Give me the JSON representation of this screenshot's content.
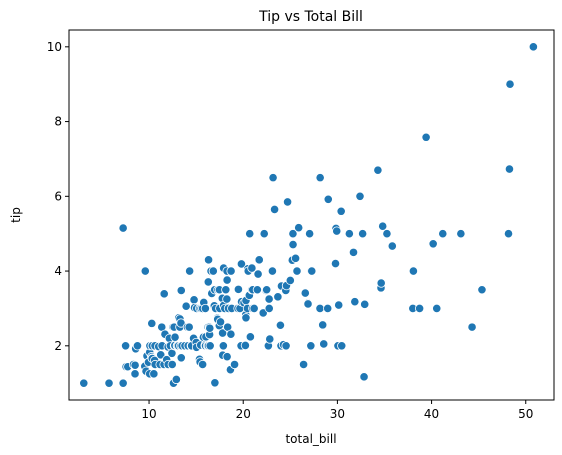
{
  "chart_data": {
    "type": "scatter",
    "title": "Tip vs Total Bill",
    "xlabel": "total_bill",
    "ylabel": "tip",
    "xlim": [
      1.5,
      53.0
    ],
    "ylim": [
      0.55,
      10.45
    ],
    "xticks": [
      10,
      20,
      30,
      40,
      50
    ],
    "yticks": [
      2,
      4,
      6,
      8,
      10
    ],
    "grid": false,
    "marker_color": "#1f77b4",
    "marker_edge_color": "#ffffff",
    "points": [
      [
        3.07,
        1.0
      ],
      [
        5.75,
        1.0
      ],
      [
        7.25,
        1.0
      ],
      [
        7.25,
        5.15
      ],
      [
        7.51,
        2.0
      ],
      [
        7.56,
        1.44
      ],
      [
        7.74,
        1.44
      ],
      [
        8.35,
        1.5
      ],
      [
        8.51,
        1.25
      ],
      [
        8.52,
        1.48
      ],
      [
        8.58,
        1.92
      ],
      [
        8.77,
        2.0
      ],
      [
        9.55,
        1.45
      ],
      [
        9.6,
        4.0
      ],
      [
        9.68,
        1.32
      ],
      [
        9.78,
        1.73
      ],
      [
        9.94,
        1.56
      ],
      [
        10.07,
        1.25
      ],
      [
        10.07,
        1.83
      ],
      [
        10.09,
        2.0
      ],
      [
        10.27,
        1.71
      ],
      [
        10.29,
        2.6
      ],
      [
        10.33,
        1.67
      ],
      [
        10.33,
        2.0
      ],
      [
        10.34,
        1.66
      ],
      [
        10.34,
        2.0
      ],
      [
        10.51,
        1.25
      ],
      [
        10.59,
        1.61
      ],
      [
        10.63,
        2.0
      ],
      [
        10.65,
        1.5
      ],
      [
        11.02,
        1.98
      ],
      [
        11.17,
        1.5
      ],
      [
        11.24,
        1.76
      ],
      [
        11.35,
        2.5
      ],
      [
        11.38,
        2.0
      ],
      [
        11.59,
        1.5
      ],
      [
        11.61,
        3.39
      ],
      [
        11.69,
        2.31
      ],
      [
        11.87,
        1.63
      ],
      [
        12.02,
        1.97
      ],
      [
        12.03,
        1.5
      ],
      [
        12.16,
        2.2
      ],
      [
        12.26,
        2.0
      ],
      [
        12.43,
        1.8
      ],
      [
        12.46,
        1.5
      ],
      [
        12.54,
        2.5
      ],
      [
        12.6,
        1.0
      ],
      [
        12.66,
        2.5
      ],
      [
        12.69,
        2.0
      ],
      [
        12.74,
        2.01
      ],
      [
        12.76,
        2.23
      ],
      [
        12.9,
        1.1
      ],
      [
        13.0,
        2.0
      ],
      [
        13.03,
        2.0
      ],
      [
        13.13,
        2.0
      ],
      [
        13.16,
        2.75
      ],
      [
        13.27,
        2.5
      ],
      [
        13.28,
        2.72
      ],
      [
        13.37,
        2.0
      ],
      [
        13.39,
        2.61
      ],
      [
        13.42,
        1.68
      ],
      [
        13.42,
        3.48
      ],
      [
        13.51,
        2.0
      ],
      [
        13.81,
        2.0
      ],
      [
        13.94,
        3.06
      ],
      [
        14.07,
        2.5
      ],
      [
        14.15,
        2.0
      ],
      [
        14.26,
        2.5
      ],
      [
        14.31,
        4.0
      ],
      [
        14.48,
        2.0
      ],
      [
        14.52,
        2.0
      ],
      [
        14.73,
        2.2
      ],
      [
        14.78,
        3.23
      ],
      [
        14.83,
        3.02
      ],
      [
        15.01,
        2.09
      ],
      [
        15.04,
        1.96
      ],
      [
        15.06,
        3.0
      ],
      [
        15.36,
        1.64
      ],
      [
        15.38,
        3.0
      ],
      [
        15.42,
        1.57
      ],
      [
        15.48,
        2.02
      ],
      [
        15.53,
        3.0
      ],
      [
        15.69,
        1.5
      ],
      [
        15.69,
        3.0
      ],
      [
        15.77,
        2.23
      ],
      [
        15.81,
        3.16
      ],
      [
        15.95,
        2.0
      ],
      [
        15.98,
        2.03
      ],
      [
        15.98,
        3.0
      ],
      [
        16.0,
        2.0
      ],
      [
        16.04,
        2.24
      ],
      [
        16.21,
        2.0
      ],
      [
        16.27,
        2.5
      ],
      [
        16.29,
        3.71
      ],
      [
        16.31,
        2.0
      ],
      [
        16.32,
        4.3
      ],
      [
        16.4,
        2.5
      ],
      [
        16.43,
        2.3
      ],
      [
        16.45,
        2.47
      ],
      [
        16.49,
        2.0
      ],
      [
        16.58,
        4.0
      ],
      [
        16.66,
        3.4
      ],
      [
        16.82,
        4.0
      ],
      [
        16.93,
        3.07
      ],
      [
        16.97,
        3.5
      ],
      [
        16.99,
        1.01
      ],
      [
        17.07,
        3.0
      ],
      [
        17.26,
        2.74
      ],
      [
        17.29,
        2.71
      ],
      [
        17.31,
        3.5
      ],
      [
        17.46,
        2.54
      ],
      [
        17.47,
        3.5
      ],
      [
        17.51,
        3.0
      ],
      [
        17.59,
        2.64
      ],
      [
        17.78,
        3.27
      ],
      [
        17.81,
        2.34
      ],
      [
        17.82,
        1.75
      ],
      [
        17.89,
        2.0
      ],
      [
        17.92,
        4.08
      ],
      [
        17.92,
        3.08
      ],
      [
        18.04,
        3.0
      ],
      [
        18.15,
        3.5
      ],
      [
        18.24,
        3.76
      ],
      [
        18.26,
        3.25
      ],
      [
        18.28,
        4.0
      ],
      [
        18.29,
        3.76
      ],
      [
        18.29,
        1.71
      ],
      [
        18.35,
        2.5
      ],
      [
        18.43,
        3.0
      ],
      [
        18.64,
        1.36
      ],
      [
        18.69,
        2.31
      ],
      [
        18.71,
        4.0
      ],
      [
        18.78,
        3.0
      ],
      [
        19.08,
        1.5
      ],
      [
        19.44,
        3.0
      ],
      [
        19.49,
        3.51
      ],
      [
        19.65,
        3.0
      ],
      [
        19.77,
        2.0
      ],
      [
        19.81,
        4.19
      ],
      [
        19.82,
        3.18
      ],
      [
        20.08,
        3.15
      ],
      [
        20.23,
        2.01
      ],
      [
        20.27,
        2.83
      ],
      [
        20.29,
        3.21
      ],
      [
        20.29,
        2.75
      ],
      [
        20.45,
        3.0
      ],
      [
        20.49,
        4.06
      ],
      [
        20.53,
        4.0
      ],
      [
        20.65,
        3.35
      ],
      [
        20.69,
        5.0
      ],
      [
        20.76,
        2.24
      ],
      [
        20.9,
        3.5
      ],
      [
        20.92,
        4.08
      ],
      [
        21.01,
        3.0
      ],
      [
        21.01,
        3.5
      ],
      [
        21.16,
        3.0
      ],
      [
        21.5,
        3.5
      ],
      [
        21.58,
        3.92
      ],
      [
        21.7,
        4.3
      ],
      [
        22.12,
        2.88
      ],
      [
        22.23,
        5.0
      ],
      [
        22.42,
        3.48
      ],
      [
        22.49,
        3.5
      ],
      [
        22.67,
        2.0
      ],
      [
        22.75,
        3.25
      ],
      [
        22.76,
        3.0
      ],
      [
        22.82,
        2.18
      ],
      [
        23.1,
        4.0
      ],
      [
        23.17,
        6.5
      ],
      [
        23.33,
        5.65
      ],
      [
        23.68,
        3.31
      ],
      [
        23.95,
        2.55
      ],
      [
        24.01,
        2.0
      ],
      [
        24.06,
        3.6
      ],
      [
        24.27,
        2.03
      ],
      [
        24.52,
        3.48
      ],
      [
        24.55,
        2.0
      ],
      [
        24.59,
        3.61
      ],
      [
        24.71,
        5.85
      ],
      [
        25.0,
        3.75
      ],
      [
        25.21,
        4.29
      ],
      [
        25.28,
        5.0
      ],
      [
        25.29,
        4.71
      ],
      [
        25.56,
        4.34
      ],
      [
        25.71,
        4.0
      ],
      [
        25.89,
        5.16
      ],
      [
        26.41,
        1.5
      ],
      [
        26.59,
        3.41
      ],
      [
        26.86,
        3.14
      ],
      [
        26.88,
        3.12
      ],
      [
        27.05,
        5.0
      ],
      [
        27.18,
        2.0
      ],
      [
        27.2,
        4.0
      ],
      [
        27.28,
        4.0
      ],
      [
        28.15,
        3.0
      ],
      [
        28.17,
        6.5
      ],
      [
        28.44,
        2.56
      ],
      [
        28.55,
        2.05
      ],
      [
        28.97,
        3.0
      ],
      [
        29.03,
        5.92
      ],
      [
        29.8,
        4.2
      ],
      [
        29.85,
        5.14
      ],
      [
        29.93,
        5.07
      ],
      [
        30.06,
        2.0
      ],
      [
        30.14,
        3.09
      ],
      [
        30.4,
        5.6
      ],
      [
        30.46,
        2.0
      ],
      [
        31.27,
        5.0
      ],
      [
        31.71,
        4.5
      ],
      [
        31.85,
        3.18
      ],
      [
        32.4,
        6.0
      ],
      [
        32.68,
        5.0
      ],
      [
        32.83,
        1.17
      ],
      [
        32.9,
        3.11
      ],
      [
        34.3,
        6.7
      ],
      [
        34.63,
        3.55
      ],
      [
        34.65,
        3.68
      ],
      [
        34.81,
        5.2
      ],
      [
        35.26,
        5.0
      ],
      [
        35.83,
        4.67
      ],
      [
        38.01,
        3.0
      ],
      [
        38.07,
        4.0
      ],
      [
        38.73,
        3.0
      ],
      [
        39.42,
        7.58
      ],
      [
        40.17,
        4.73
      ],
      [
        40.55,
        3.0
      ],
      [
        41.19,
        5.0
      ],
      [
        43.11,
        5.0
      ],
      [
        44.3,
        2.5
      ],
      [
        45.35,
        3.5
      ],
      [
        48.17,
        5.0
      ],
      [
        48.27,
        6.73
      ],
      [
        48.33,
        9.0
      ],
      [
        50.81,
        10.0
      ]
    ]
  }
}
